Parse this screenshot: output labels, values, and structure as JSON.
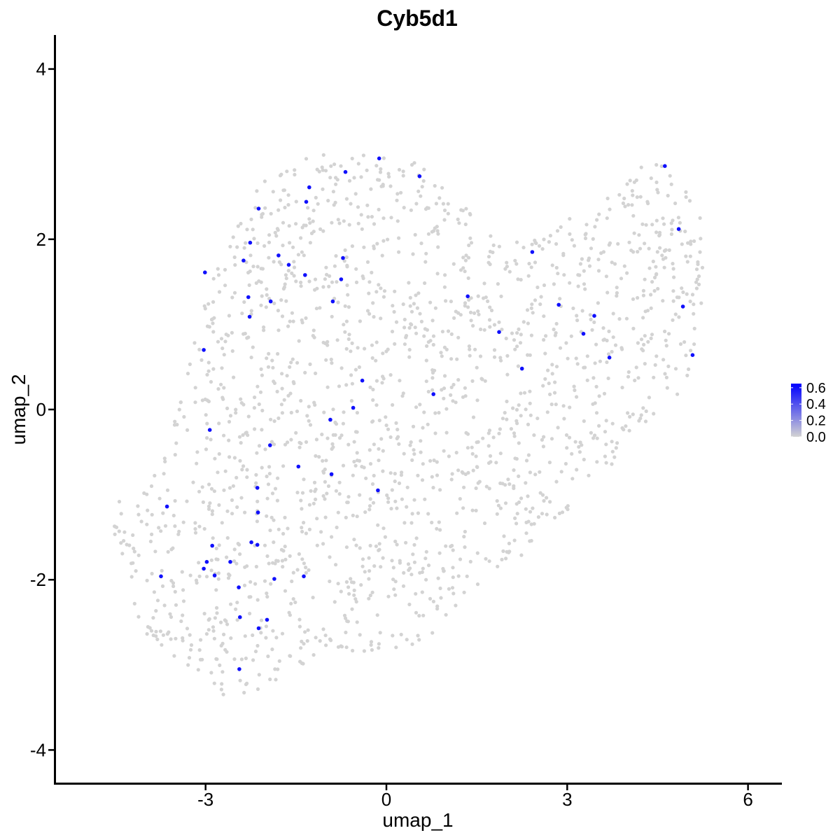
{
  "chart_data": {
    "type": "scatter",
    "title": "Cyb5d1",
    "xlabel": "umap_1",
    "ylabel": "umap_2",
    "xlim": [
      -5.45,
      6.6
    ],
    "ylim": [
      -4.3,
      4.4
    ],
    "x_ticks": [
      -3,
      0,
      3,
      6
    ],
    "x_tick_labels": [
      "-3",
      "0",
      "3",
      "6"
    ],
    "y_ticks": [
      -4,
      -2,
      0,
      2,
      4
    ],
    "y_tick_labels": [
      "-4",
      "-2",
      "0",
      "2",
      "4"
    ],
    "grid": false,
    "legend": {
      "position": "right",
      "type": "colorbar",
      "range": [
        0,
        0.65
      ],
      "ticks": [
        0.0,
        0.2,
        0.4,
        0.6
      ],
      "tick_labels": [
        "0.0",
        "0.2",
        "0.4",
        "0.6"
      ],
      "low_color": "#d3d3d3",
      "high_color": "#0000ff"
    },
    "background_points": {
      "color": "#d3d3d3",
      "value": 0.0,
      "count": 1800,
      "description_regions": "umap cloud"
    },
    "expressing_points": [
      {
        "x": -0.12,
        "y": 2.95,
        "value": 0.6
      },
      {
        "x": -0.68,
        "y": 2.79,
        "value": 0.6
      },
      {
        "x": 0.55,
        "y": 2.74,
        "value": 0.6
      },
      {
        "x": -1.28,
        "y": 2.61,
        "value": 0.6
      },
      {
        "x": -1.33,
        "y": 2.44,
        "value": 0.6
      },
      {
        "x": -2.12,
        "y": 2.36,
        "value": 0.6
      },
      {
        "x": -2.26,
        "y": 1.96,
        "value": 0.6
      },
      {
        "x": -1.79,
        "y": 1.81,
        "value": 0.6
      },
      {
        "x": -0.72,
        "y": 1.78,
        "value": 0.6
      },
      {
        "x": -2.37,
        "y": 1.75,
        "value": 0.6
      },
      {
        "x": -1.62,
        "y": 1.7,
        "value": 0.6
      },
      {
        "x": -3.01,
        "y": 1.61,
        "value": 0.6
      },
      {
        "x": -1.35,
        "y": 1.58,
        "value": 0.6
      },
      {
        "x": -0.75,
        "y": 1.53,
        "value": 0.6
      },
      {
        "x": -2.29,
        "y": 1.32,
        "value": 0.6
      },
      {
        "x": -1.92,
        "y": 1.27,
        "value": 0.6
      },
      {
        "x": -0.89,
        "y": 1.27,
        "value": 0.6
      },
      {
        "x": -2.27,
        "y": 1.09,
        "value": 0.6
      },
      {
        "x": -3.03,
        "y": 0.7,
        "value": 0.6
      },
      {
        "x": -0.4,
        "y": 0.34,
        "value": 0.6
      },
      {
        "x": -0.55,
        "y": 0.02,
        "value": 0.6
      },
      {
        "x": -0.93,
        "y": -0.12,
        "value": 0.6
      },
      {
        "x": -2.93,
        "y": -0.24,
        "value": 0.6
      },
      {
        "x": -1.93,
        "y": -0.42,
        "value": 0.6
      },
      {
        "x": -1.46,
        "y": -0.67,
        "value": 0.6
      },
      {
        "x": -0.91,
        "y": -0.76,
        "value": 0.6
      },
      {
        "x": -2.14,
        "y": -0.92,
        "value": 0.6
      },
      {
        "x": -0.14,
        "y": -0.95,
        "value": 0.6
      },
      {
        "x": -2.13,
        "y": -1.21,
        "value": 0.6
      },
      {
        "x": -3.64,
        "y": -1.14,
        "value": 0.6
      },
      {
        "x": -2.89,
        "y": -1.6,
        "value": 0.6
      },
      {
        "x": -2.24,
        "y": -1.56,
        "value": 0.6
      },
      {
        "x": -2.14,
        "y": -1.59,
        "value": 0.6
      },
      {
        "x": -2.98,
        "y": -1.79,
        "value": 0.6
      },
      {
        "x": -2.59,
        "y": -1.79,
        "value": 0.6
      },
      {
        "x": -3.03,
        "y": -1.87,
        "value": 0.6
      },
      {
        "x": -3.74,
        "y": -1.96,
        "value": 0.6
      },
      {
        "x": -2.85,
        "y": -1.95,
        "value": 0.6
      },
      {
        "x": -1.37,
        "y": -1.96,
        "value": 0.6
      },
      {
        "x": -1.86,
        "y": -1.99,
        "value": 0.6
      },
      {
        "x": -2.45,
        "y": -2.09,
        "value": 0.6
      },
      {
        "x": -2.43,
        "y": -2.44,
        "value": 0.6
      },
      {
        "x": -1.98,
        "y": -2.47,
        "value": 0.6
      },
      {
        "x": -2.12,
        "y": -2.57,
        "value": 0.6
      },
      {
        "x": -2.44,
        "y": -3.05,
        "value": 0.6
      },
      {
        "x": 0.78,
        "y": 0.18,
        "value": 0.6
      },
      {
        "x": 1.35,
        "y": 1.33,
        "value": 0.6
      },
      {
        "x": 1.87,
        "y": 0.91,
        "value": 0.6
      },
      {
        "x": 2.25,
        "y": 0.48,
        "value": 0.6
      },
      {
        "x": 2.42,
        "y": 1.85,
        "value": 0.6
      },
      {
        "x": 2.86,
        "y": 1.23,
        "value": 0.6
      },
      {
        "x": 3.27,
        "y": 0.89,
        "value": 0.6
      },
      {
        "x": 3.45,
        "y": 1.1,
        "value": 0.6
      },
      {
        "x": 3.7,
        "y": 0.61,
        "value": 0.6
      },
      {
        "x": 4.62,
        "y": 2.86,
        "value": 0.6
      },
      {
        "x": 4.85,
        "y": 2.12,
        "value": 0.6
      },
      {
        "x": 4.92,
        "y": 1.21,
        "value": 0.6
      },
      {
        "x": 5.08,
        "y": 0.64,
        "value": 0.6
      }
    ]
  }
}
